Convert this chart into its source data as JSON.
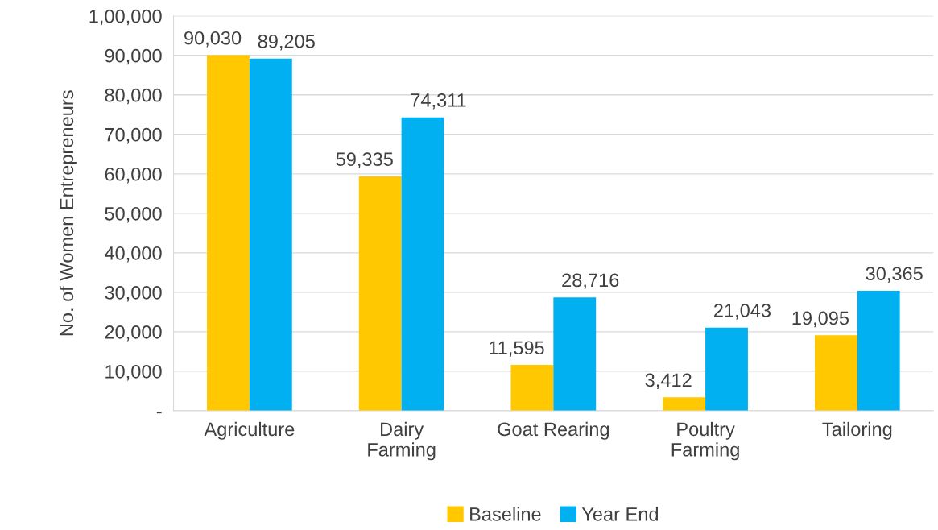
{
  "chart_data": {
    "type": "bar",
    "ylabel": "No. of Women Entrepreneurs",
    "categories": [
      "Agriculture",
      "Dairy\nFarming",
      "Goat Rearing",
      "Poultry\nFarming",
      "Tailoring"
    ],
    "series": [
      {
        "name": "Baseline",
        "color": "#ffc800",
        "values": [
          90030,
          59335,
          11595,
          3412,
          19095
        ],
        "value_labels": [
          "90,030",
          "59,335",
          "11,595",
          "3,412",
          "19,095"
        ]
      },
      {
        "name": "Year End",
        "color": "#00b0f0",
        "values": [
          89205,
          74311,
          28716,
          21043,
          30365
        ],
        "value_labels": [
          "89,205",
          "74,311",
          "28,716",
          "21,043",
          "30,365"
        ]
      }
    ],
    "ylim": [
      0,
      100000
    ],
    "yticks": [
      {
        "value": 0,
        "label": "-"
      },
      {
        "value": 10000,
        "label": "10,000"
      },
      {
        "value": 20000,
        "label": "20,000"
      },
      {
        "value": 30000,
        "label": "30,000"
      },
      {
        "value": 40000,
        "label": "40,000"
      },
      {
        "value": 50000,
        "label": "50,000"
      },
      {
        "value": 60000,
        "label": "60,000"
      },
      {
        "value": 70000,
        "label": "70,000"
      },
      {
        "value": 80000,
        "label": "80,000"
      },
      {
        "value": 90000,
        "label": "90,000"
      },
      {
        "value": 100000,
        "label": "1,00,000"
      }
    ],
    "grid": "y",
    "legend": "bottom"
  }
}
